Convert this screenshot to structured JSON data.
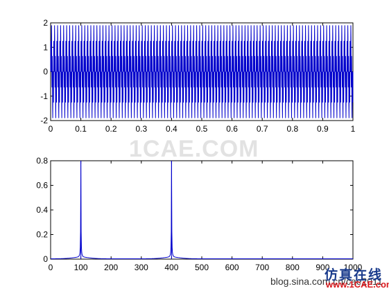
{
  "chart_data": [
    {
      "type": "line",
      "title": "",
      "xlabel": "",
      "ylabel": "",
      "xlim": [
        0,
        1
      ],
      "ylim": [
        -2,
        2
      ],
      "xticks": [
        0,
        0.1,
        0.2,
        0.3,
        0.4,
        0.5,
        0.6,
        0.7,
        0.8,
        0.9,
        1
      ],
      "xtick_labels": [
        "0",
        "0.1",
        "0.2",
        "0.3",
        "0.4",
        "0.5",
        "0.6",
        "0.7",
        "0.8",
        "0.9",
        "1"
      ],
      "yticks": [
        -2,
        -1,
        0,
        1,
        2
      ],
      "ytick_labels": [
        "-2",
        "-1",
        "0",
        "1",
        "2"
      ],
      "series": [
        {
          "color": "#0000cc",
          "signal": "sin(2*pi*100*t) + sin(2*pi*400*t)",
          "components": [
            {
              "frequency": 100,
              "amplitude": 1
            },
            {
              "frequency": 400,
              "amplitude": 1
            }
          ]
        }
      ],
      "grid": false
    },
    {
      "type": "line",
      "title": "",
      "xlabel": "",
      "ylabel": "",
      "xlim": [
        0,
        1000
      ],
      "ylim": [
        0,
        0.8
      ],
      "xticks": [
        0,
        100,
        200,
        300,
        400,
        500,
        600,
        700,
        800,
        900,
        1000
      ],
      "xtick_labels": [
        "0",
        "100",
        "200",
        "300",
        "400",
        "500",
        "600",
        "700",
        "800",
        "900",
        "1000"
      ],
      "yticks": [
        0,
        0.2,
        0.4,
        0.6,
        0.8
      ],
      "ytick_labels": [
        "0",
        "0.2",
        "0.4",
        "0.6",
        "0.8"
      ],
      "series": [
        {
          "color": "#0000cc",
          "peaks": [
            {
              "x": 100,
              "y": 0.8
            },
            {
              "x": 400,
              "y": 0.8
            }
          ],
          "baseline": 0.003
        }
      ],
      "grid": false
    }
  ],
  "watermarks": {
    "center": "1CAE.COM",
    "url": "blog.sina.com.cn/cae2011",
    "brand": "仿真在线",
    "site": "www.1CAE.com"
  }
}
